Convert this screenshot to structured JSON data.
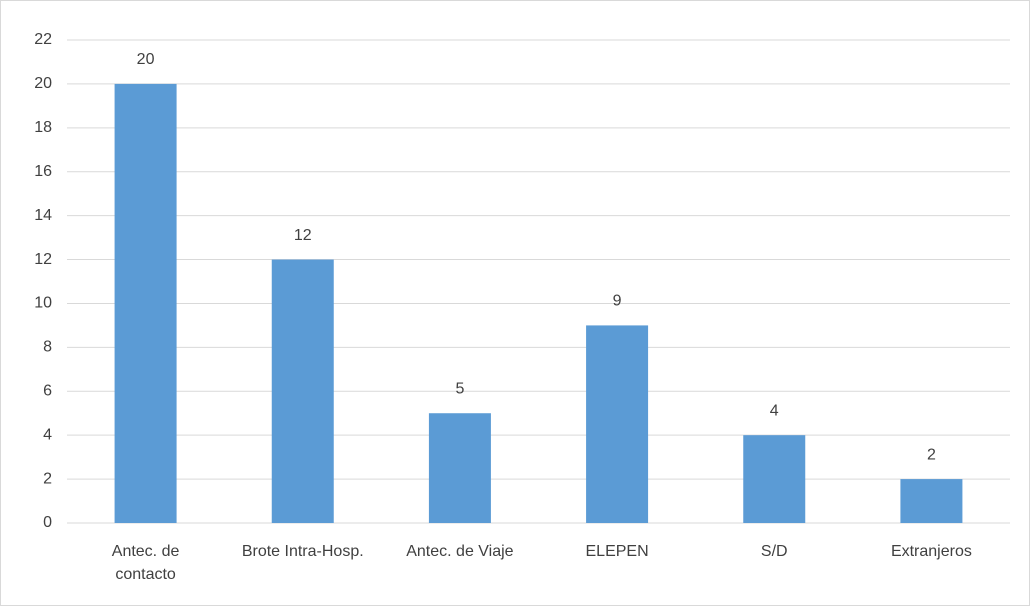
{
  "chart_data": {
    "type": "bar",
    "categories": [
      "Antec. de contacto",
      "Brote Intra-Hosp.",
      "Antec. de  Viaje",
      "ELEPEN",
      "S/D",
      "Extranjeros"
    ],
    "values": [
      20,
      12,
      5,
      9,
      4,
      2
    ],
    "color": "#5b9bd5",
    "ylim": [
      0,
      22
    ],
    "yticks": [
      0,
      2,
      4,
      6,
      8,
      10,
      12,
      14,
      16,
      18,
      20,
      22
    ],
    "grid": true
  }
}
